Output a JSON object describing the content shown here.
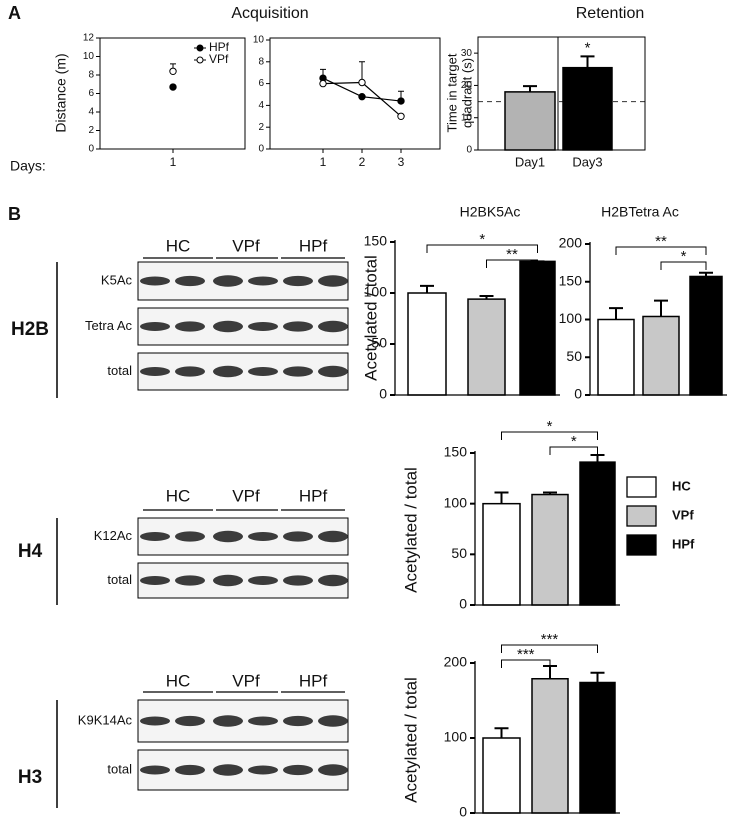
{
  "panel_labels": [
    "A",
    "B"
  ],
  "chart_data": [
    {
      "type": "line",
      "title": "Acquisition",
      "y_label": "Distance (m)",
      "x_label": "Days:",
      "categories": [
        "1"
      ],
      "series": [
        {
          "name": "HPf",
          "color": "#000000",
          "marker": "filled",
          "values": [
            6.7
          ],
          "errors": [
            null
          ]
        },
        {
          "name": "VPf",
          "color": "#000000",
          "marker": "open",
          "values": [
            8.4
          ],
          "errors": [
            0.8
          ]
        }
      ],
      "ylim": [
        0,
        12
      ],
      "yticks": [
        0,
        2,
        4,
        6,
        8,
        10,
        12
      ],
      "legend": "upper right"
    },
    {
      "type": "line",
      "categories": [
        "1",
        "2",
        "3"
      ],
      "series": [
        {
          "color": "#000000",
          "marker": "filled",
          "values": [
            6.5,
            4.8,
            4.4
          ],
          "errors": [
            0.8,
            null,
            0.9
          ]
        },
        {
          "color": "#000000",
          "marker": "open",
          "values": [
            6.0,
            6.1,
            3.0
          ],
          "errors": [
            null,
            1.9,
            null
          ]
        }
      ],
      "ylim": [
        0,
        10
      ],
      "yticks": [
        0,
        2,
        4,
        6,
        8,
        10
      ]
    },
    {
      "type": "bar",
      "title": "Retention",
      "y_label": [
        "Time in target",
        "quadrant (s)"
      ],
      "categories": [
        "Day1",
        "Day3"
      ],
      "values": [
        18,
        25.5
      ],
      "errors": [
        1.8,
        3.5
      ],
      "colors": [
        "#b3b3b3",
        "#000000"
      ],
      "ylim": [
        0,
        35
      ],
      "yticks": [
        0,
        10,
        20,
        30
      ],
      "reference_line": 15,
      "annotations": [
        {
          "text": "*",
          "category": 1
        }
      ]
    },
    {
      "type": "bar",
      "title": "H2BK5Ac",
      "y_label": "Acetylated / total",
      "categories": [
        null,
        null,
        null
      ],
      "values": [
        100,
        94,
        131
      ],
      "errors": [
        7,
        3,
        0
      ],
      "colors": [
        "#ffffff",
        "#c8c8c8",
        "#000000"
      ],
      "ylim": [
        0,
        150
      ],
      "yticks": [
        0,
        50,
        100,
        150
      ],
      "brackets": [
        {
          "label": "*",
          "between": [
            0,
            2
          ]
        },
        {
          "label": "**",
          "between": [
            1,
            2
          ]
        }
      ]
    },
    {
      "type": "bar",
      "title": "H2BTetra Ac",
      "categories": [
        null,
        null,
        null
      ],
      "values": [
        100,
        104,
        157
      ],
      "errors": [
        15,
        21,
        5
      ],
      "colors": [
        "#ffffff",
        "#c8c8c8",
        "#000000"
      ],
      "ylim": [
        0,
        200
      ],
      "yticks": [
        0,
        50,
        100,
        150,
        200
      ],
      "brackets": [
        {
          "label": "**",
          "between": [
            0,
            2
          ]
        },
        {
          "label": "*",
          "between": [
            1,
            2
          ]
        }
      ]
    },
    {
      "type": "bar",
      "y_label": "Acetylated / total",
      "categories": [
        "HC",
        "VPf",
        "HPf"
      ],
      "values": [
        100,
        109,
        141
      ],
      "errors": [
        11,
        2,
        7
      ],
      "colors": [
        "#ffffff",
        "#c8c8c8",
        "#000000"
      ],
      "ylim": [
        0,
        150
      ],
      "yticks": [
        0,
        50,
        100,
        150
      ],
      "legend": "right",
      "brackets": [
        {
          "label": "*",
          "between": [
            0,
            2
          ]
        },
        {
          "label": "*",
          "between": [
            1,
            2
          ]
        }
      ]
    },
    {
      "type": "bar",
      "y_label": "Acetylated / total",
      "categories": [
        null,
        null,
        null
      ],
      "values": [
        100,
        179,
        174
      ],
      "errors": [
        13,
        17,
        13
      ],
      "colors": [
        "#ffffff",
        "#c8c8c8",
        "#000000"
      ],
      "ylim": [
        0,
        200
      ],
      "yticks": [
        0,
        100,
        200
      ],
      "brackets": [
        {
          "label": "***",
          "between": [
            0,
            2
          ]
        },
        {
          "label": "***",
          "between": [
            0,
            1
          ]
        }
      ]
    }
  ],
  "blots": [
    {
      "histone": "H2B",
      "groups": [
        "HC",
        "VPf",
        "HPf"
      ],
      "rows": [
        "K5Ac",
        "Tetra Ac",
        "total"
      ]
    },
    {
      "histone": "H4",
      "groups": [
        "HC",
        "VPf",
        "HPf"
      ],
      "rows": [
        "K12Ac",
        "total"
      ]
    },
    {
      "histone": "H3",
      "groups": [
        "HC",
        "VPf",
        "HPf"
      ],
      "rows": [
        "K9K14Ac",
        "total"
      ]
    }
  ]
}
